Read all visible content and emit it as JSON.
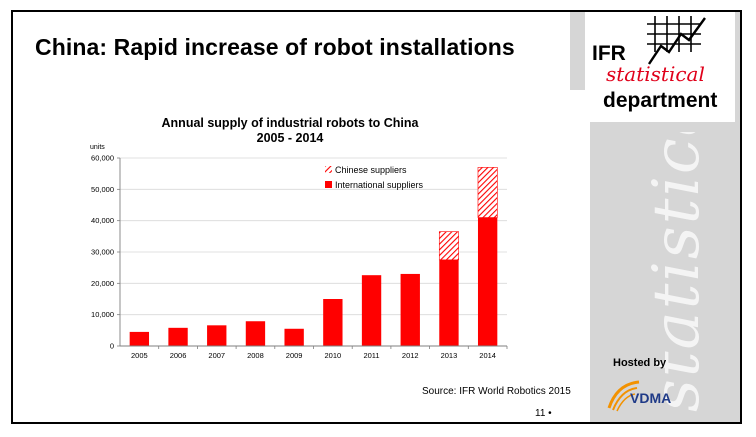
{
  "slide": {
    "title": "China: Rapid increase of robot installations",
    "source": "Source: IFR World Robotics 2015",
    "page_number": "11 •",
    "hosted_by": "Hosted by",
    "host_name": "VDMA",
    "logo": {
      "line1": "IFR",
      "line2": "statistical",
      "line3": "department"
    },
    "sidebar_watermark": "statistical"
  },
  "colors": {
    "bar": "#ff0000",
    "axis": "#7f7f7f",
    "grid": "#d9d9d9",
    "brand_red": "#e0001a",
    "vdma_blue": "#1f3a87",
    "vdma_orange": "#f39200"
  },
  "chart_data": {
    "type": "bar",
    "stacked": true,
    "title": "Annual supply of industrial robots to China",
    "subtitle": "2005 - 2014",
    "ylabel": "units",
    "xlabel": "",
    "ylim": [
      0,
      60000
    ],
    "yticks": [
      0,
      10000,
      20000,
      30000,
      40000,
      50000,
      60000
    ],
    "ytick_labels": [
      "0",
      "10,000",
      "20,000",
      "30,000",
      "40,000",
      "50,000",
      "60,000"
    ],
    "categories": [
      "2005",
      "2006",
      "2007",
      "2008",
      "2009",
      "2010",
      "2011",
      "2012",
      "2013",
      "2014"
    ],
    "series": [
      {
        "name": "International suppliers",
        "pattern": "solid",
        "values": [
          4500,
          5800,
          6600,
          7900,
          5500,
          15000,
          22600,
          23000,
          27500,
          41000
        ]
      },
      {
        "name": "Chinese suppliers",
        "pattern": "hatched",
        "values": [
          0,
          0,
          0,
          0,
          0,
          0,
          0,
          0,
          9000,
          16000
        ]
      }
    ],
    "legend": [
      "Chinese suppliers",
      "International suppliers"
    ],
    "legend_position": "top-right",
    "grid": true
  }
}
